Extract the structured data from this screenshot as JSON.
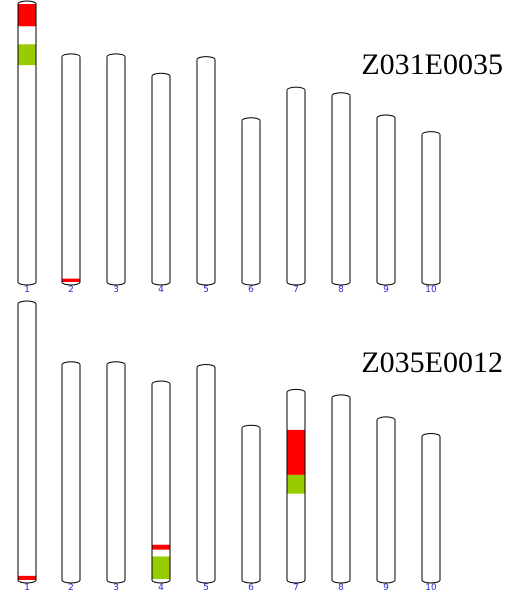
{
  "colors": {
    "outline": "#000000",
    "fill": "#ffffff",
    "red_segment": "#ff0000",
    "green_segment": "#99cc00",
    "number_text": "#2a2ad8"
  },
  "panels": [
    {
      "label": "Z031E0035",
      "chromosomes": [
        {
          "number": "1",
          "relative_length": 1.0,
          "segments": [
            {
              "color": "red",
              "start": 0.0,
              "end": 0.08
            },
            {
              "color": "green",
              "start": 0.145,
              "end": 0.22
            }
          ]
        },
        {
          "number": "2",
          "relative_length": 0.81,
          "segments": [
            {
              "color": "red",
              "start": 0.985,
              "end": 1.0
            }
          ]
        },
        {
          "number": "3",
          "relative_length": 0.81,
          "segments": []
        },
        {
          "number": "4",
          "relative_length": 0.74,
          "segments": []
        },
        {
          "number": "5",
          "relative_length": 0.8,
          "segments": []
        },
        {
          "number": "6",
          "relative_length": 0.58,
          "segments": []
        },
        {
          "number": "7",
          "relative_length": 0.69,
          "segments": []
        },
        {
          "number": "8",
          "relative_length": 0.67,
          "segments": []
        },
        {
          "number": "9",
          "relative_length": 0.59,
          "segments": []
        },
        {
          "number": "10",
          "relative_length": 0.53,
          "segments": []
        }
      ]
    },
    {
      "label": "Z035E0012",
      "chromosomes": [
        {
          "number": "1",
          "relative_length": 1.0,
          "segments": [
            {
              "color": "red",
              "start": 0.985,
              "end": 1.0
            }
          ]
        },
        {
          "number": "2",
          "relative_length": 0.78,
          "segments": []
        },
        {
          "number": "3",
          "relative_length": 0.78,
          "segments": []
        },
        {
          "number": "4",
          "relative_length": 0.71,
          "segments": [
            {
              "color": "red",
              "start": 0.82,
              "end": 0.845
            },
            {
              "color": "green",
              "start": 0.88,
              "end": 0.995
            }
          ]
        },
        {
          "number": "5",
          "relative_length": 0.77,
          "segments": []
        },
        {
          "number": "6",
          "relative_length": 0.55,
          "segments": []
        },
        {
          "number": "7",
          "relative_length": 0.68,
          "segments": [
            {
              "color": "red",
              "start": 0.2,
              "end": 0.44
            },
            {
              "color": "green",
              "start": 0.44,
              "end": 0.54
            }
          ]
        },
        {
          "number": "8",
          "relative_length": 0.66,
          "segments": []
        },
        {
          "number": "9",
          "relative_length": 0.58,
          "segments": []
        },
        {
          "number": "10",
          "relative_length": 0.52,
          "segments": []
        }
      ]
    }
  ]
}
